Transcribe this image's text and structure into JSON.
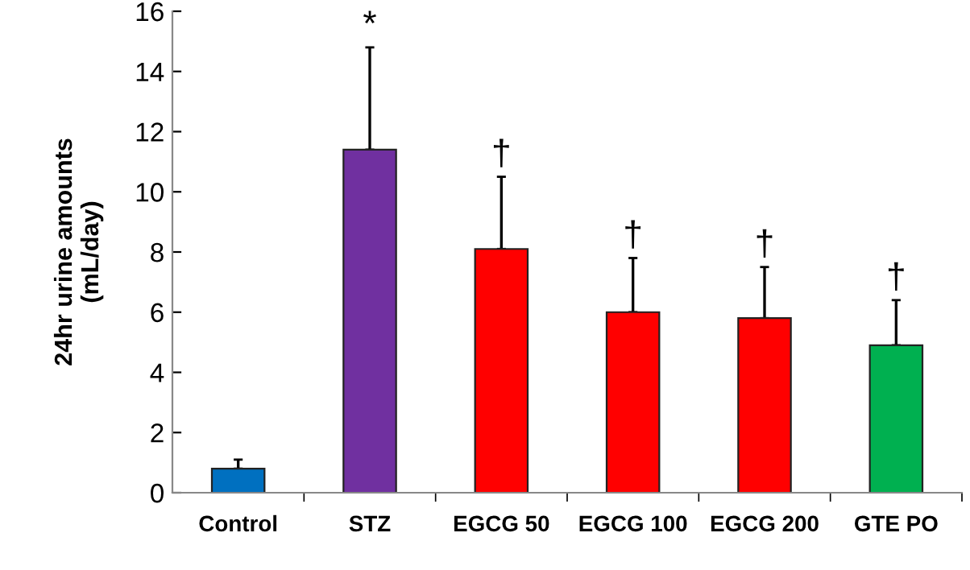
{
  "chart_data": {
    "type": "bar",
    "ylabel": "24hr urine amounts\n(mL/day)",
    "categories": [
      "Control",
      "STZ",
      "EGCG 50",
      "EGCG 100",
      "EGCG 200",
      "GTE PO"
    ],
    "values": [
      0.8,
      11.4,
      8.1,
      6.0,
      5.8,
      4.9
    ],
    "colors": [
      "#0070c0",
      "#7030a0",
      "#ff0000",
      "#ff0000",
      "#ff0000",
      "#00b050"
    ],
    "errors": [
      [
        0.8,
        1.1
      ],
      [
        11.4,
        14.8
      ],
      [
        8.1,
        10.5
      ],
      [
        6.0,
        7.8
      ],
      [
        5.8,
        7.5
      ],
      [
        4.9,
        6.4
      ]
    ],
    "ylim": [
      0,
      16
    ],
    "yticks": [
      0,
      2,
      4,
      6,
      8,
      10,
      12,
      14,
      16
    ],
    "grid": false,
    "annotations": [
      {
        "text": "*",
        "x": "STZ",
        "y": 14.8
      },
      {
        "text": "†",
        "x": "EGCG 50",
        "y": 10.5
      },
      {
        "text": "†",
        "x": "EGCG 100",
        "y": 7.8
      },
      {
        "text": "†",
        "x": "EGCG 200",
        "y": 7.5
      },
      {
        "text": "†",
        "x": "GTE PO",
        "y": 6.4
      }
    ]
  }
}
